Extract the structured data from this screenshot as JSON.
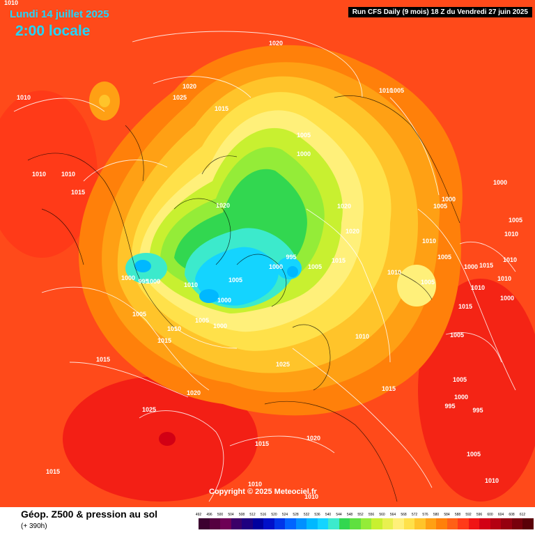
{
  "header": {
    "date_line": "Lundi 14 juillet 2025",
    "time_line": "2:00 locale",
    "run_info": "Run CFS Daily (9 mois) 18 Z du Vendredi 27 juin 2025"
  },
  "copyright": "Copyright © 2025 Meteociel.fr",
  "footer": {
    "title": "Géop. Z500 & pression au sol",
    "subtitle": "(+ 390h)"
  },
  "legend": {
    "levels": [
      "492",
      "496",
      "500",
      "504",
      "508",
      "512",
      "516",
      "520",
      "524",
      "528",
      "532",
      "536",
      "540",
      "544",
      "548",
      "552",
      "556",
      "560",
      "564",
      "568",
      "572",
      "576",
      "580",
      "584",
      "588",
      "592",
      "596",
      "600",
      "604",
      "608",
      "612"
    ],
    "colors": [
      "#3c0030",
      "#55003f",
      "#6e0055",
      "#3b0068",
      "#1e0080",
      "#00009e",
      "#0010c8",
      "#0035e8",
      "#0064ff",
      "#0090ff",
      "#00b8ff",
      "#14d4ff",
      "#3ceacc",
      "#32d750",
      "#5fe040",
      "#94ec38",
      "#c8f030",
      "#e8f050",
      "#fff07a",
      "#ffe14a",
      "#ffc42a",
      "#ffa014",
      "#ff800a",
      "#ff6016",
      "#ff3a18",
      "#f01414",
      "#d20014",
      "#b40012",
      "#960010",
      "#78000c",
      "#5a0008"
    ]
  },
  "pressure_labels": [
    {
      "text": "1010"
    },
    {
      "text": "1010"
    },
    {
      "text": "1010"
    },
    {
      "text": "1015"
    },
    {
      "text": "1020"
    },
    {
      "text": "1025"
    },
    {
      "text": "1020"
    },
    {
      "text": "1015"
    },
    {
      "text": "1005"
    },
    {
      "text": "1000"
    },
    {
      "text": "1010"
    },
    {
      "text": "1005"
    },
    {
      "text": "1020"
    },
    {
      "text": "1020"
    },
    {
      "text": "1020"
    },
    {
      "text": "1000"
    },
    {
      "text": "1005"
    },
    {
      "text": "1000"
    },
    {
      "text": "1005"
    },
    {
      "text": "1010"
    },
    {
      "text": "1010"
    },
    {
      "text": "1015"
    },
    {
      "text": "1005"
    },
    {
      "text": "1000"
    },
    {
      "text": "995"
    },
    {
      "text": "1000"
    },
    {
      "text": "1005"
    },
    {
      "text": "995"
    },
    {
      "text": "1005"
    },
    {
      "text": "1000"
    },
    {
      "text": "1010"
    },
    {
      "text": "1015"
    },
    {
      "text": "1005"
    },
    {
      "text": "1010"
    },
    {
      "text": "1000"
    },
    {
      "text": "1015"
    },
    {
      "text": "1025"
    },
    {
      "text": "1015"
    },
    {
      "text": "1020"
    },
    {
      "text": "1010"
    },
    {
      "text": "1020"
    },
    {
      "text": "1015"
    },
    {
      "text": "1005"
    },
    {
      "text": "1000"
    },
    {
      "text": "995"
    },
    {
      "text": "995"
    },
    {
      "text": "1005"
    },
    {
      "text": "1010"
    },
    {
      "text": "1025"
    },
    {
      "text": "1015"
    },
    {
      "text": "1010"
    },
    {
      "text": "1010"
    },
    {
      "text": "1010"
    },
    {
      "text": "1015"
    },
    {
      "text": "1005"
    },
    {
      "text": "1005"
    },
    {
      "text": "1000"
    },
    {
      "text": "1010"
    },
    {
      "text": "1015"
    },
    {
      "text": "1010"
    },
    {
      "text": "1010"
    },
    {
      "text": "1010"
    },
    {
      "text": "1005"
    },
    {
      "text": "1000"
    },
    {
      "text": "1000"
    }
  ]
}
